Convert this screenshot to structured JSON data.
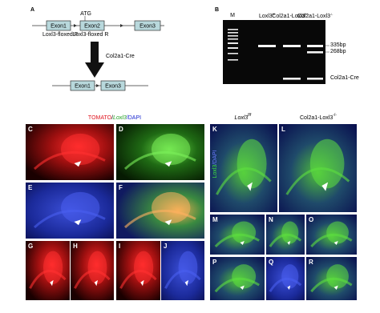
{
  "panel_a": {
    "label": "A",
    "atg": "ATG",
    "exons": [
      "Exon1",
      "Exon2",
      "Exon3"
    ],
    "primers": [
      "Loxl3-floxed F",
      "Loxl3-floxed R"
    ],
    "recombinase": "Col2a1-Cre",
    "exons_after": [
      "Exon1",
      "Exon3"
    ]
  },
  "panel_b": {
    "label": "B",
    "marker": "M",
    "lanes": [
      {
        "name": "Loxl3",
        "sup": "f/f"
      },
      {
        "name": "Col2a1-Loxl3",
        "sup": "+/-"
      },
      {
        "name": "Col2a1-Loxl3",
        "sup": "-/-"
      }
    ],
    "band_labels": [
      "335bp",
      "268bp",
      "Col2a1-Cre"
    ]
  },
  "panel_c": {
    "stain": [
      "TOMATO",
      "/",
      "Loxl3",
      "/DAPI"
    ],
    "side_stain": [
      "Loxl3",
      "/DAPI"
    ],
    "genotypes": [
      {
        "name": "Loxl3",
        "sup": "f/f"
      },
      {
        "name": "Col2a1-Loxl3",
        "sup": "-/-"
      }
    ],
    "letters": [
      "C",
      "D",
      "E",
      "F",
      "G",
      "H",
      "I",
      "J",
      "K",
      "L",
      "M",
      "N",
      "O",
      "P",
      "Q",
      "R"
    ]
  }
}
